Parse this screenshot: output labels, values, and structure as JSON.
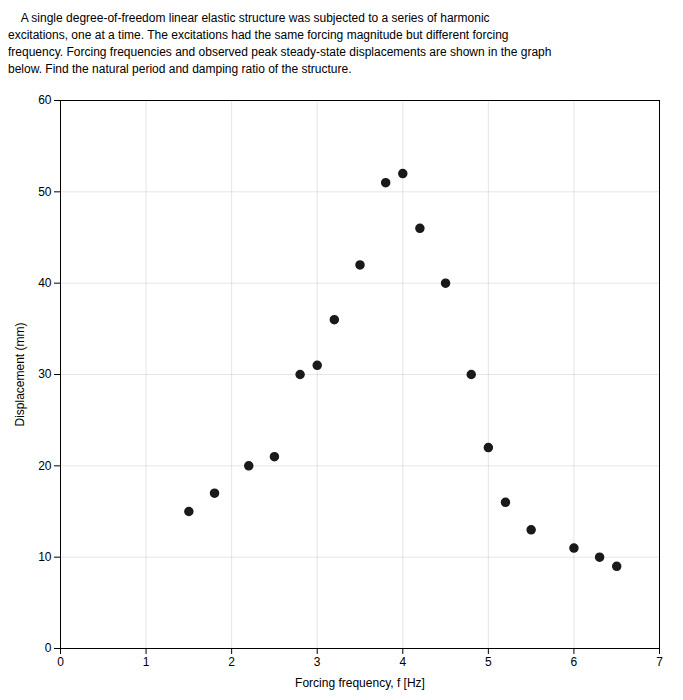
{
  "chart_data": {
    "type": "scatter",
    "annotations": [
      "    A single degree-of-freedom linear elastic structure was subjected to a series of harmonic",
      "excitations, one at a time. The excitations had the same forcing magnitude but different forcing",
      "frequency. Forcing frequencies and observed peak steady-state displacements are shown in the graph",
      "below. Find the natural period and damping ratio of the structure."
    ],
    "x": [
      1.5,
      1.8,
      2.2,
      2.5,
      2.8,
      3.0,
      3.2,
      3.5,
      3.8,
      4.0,
      4.2,
      4.5,
      4.8,
      5.0,
      5.2,
      5.5,
      6.0,
      6.3,
      6.5
    ],
    "values": [
      15,
      17,
      20,
      21,
      30,
      31,
      36,
      42,
      51,
      52,
      46,
      40,
      30,
      22,
      16,
      13,
      11,
      10,
      9
    ],
    "xlabel": "Forcing frequency, f [Hz]",
    "ylabel": "Displacement (mm)",
    "xlim": [
      0,
      7
    ],
    "ylim": [
      0,
      60
    ],
    "xticks": [
      0,
      1,
      2,
      3,
      4,
      5,
      6,
      7
    ],
    "yticks": [
      0,
      10,
      20,
      30,
      40,
      50,
      60
    ],
    "grid": true,
    "color": "#1a1a1a",
    "marker": "circle"
  }
}
